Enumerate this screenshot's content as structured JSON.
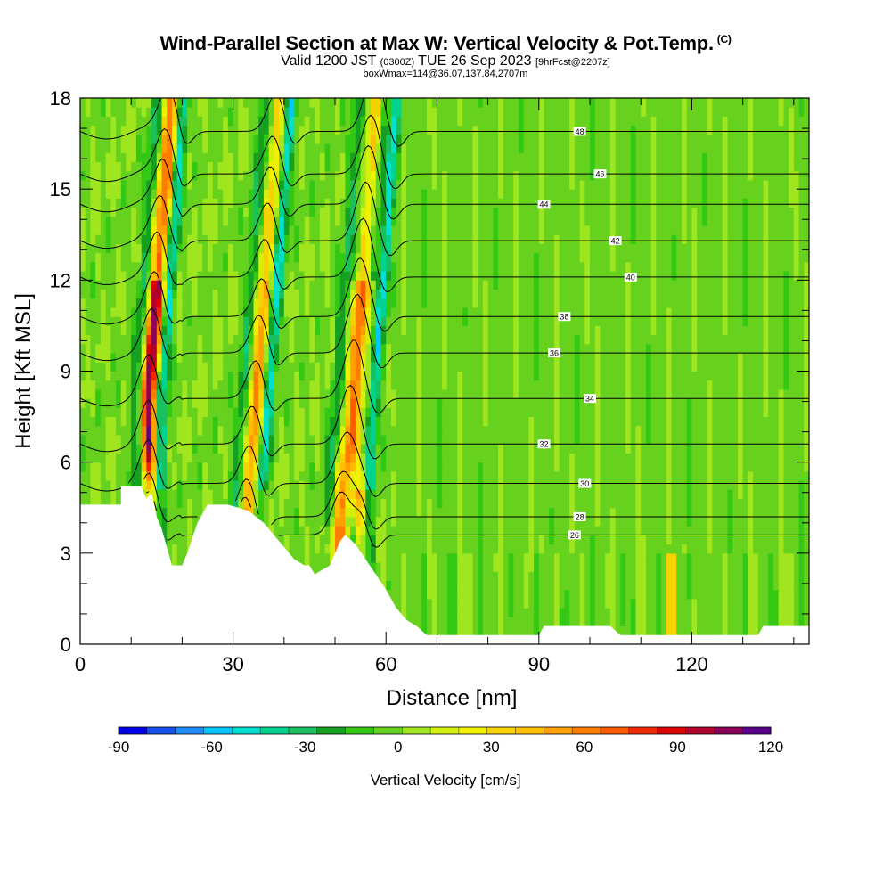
{
  "header": {
    "title_main": "Wind-Parallel Section at Max W: Vertical Velocity & Pot.Temp.",
    "title_copyright": "(C)",
    "valid_prefix": "Valid 1200 JST",
    "valid_utc": "(0300Z)",
    "valid_date": "TUE 26 Sep 2023",
    "forecast": "[9hrFcst@2207z]",
    "location_line": "boxWmax=114@36.07,137.84,2707m"
  },
  "chart_data": {
    "type": "heatmap",
    "title": "Wind-Parallel Section at Max W: Vertical Velocity & Pot.Temp.",
    "xlabel": "Distance [nm]",
    "ylabel": "Height [Kft MSL]",
    "xlim": [
      0,
      143
    ],
    "ylim": [
      0,
      18
    ],
    "xticks": [
      0,
      30,
      60,
      90,
      120
    ],
    "yticks": [
      0,
      3,
      6,
      9,
      12,
      15,
      18
    ],
    "colorbar": {
      "label": "Vertical Velocity [cm/s]",
      "ticks": [
        -90,
        -60,
        -30,
        0,
        30,
        60,
        90,
        120
      ],
      "min": -90,
      "max": 120,
      "step": 10,
      "colors": [
        "#0000e6",
        "#1450f0",
        "#1e8cff",
        "#00c8ff",
        "#00e0d0",
        "#00d290",
        "#18c060",
        "#14a020",
        "#32c814",
        "#66d21e",
        "#a0e61e",
        "#d2f00a",
        "#f0f000",
        "#f5d200",
        "#ffbe00",
        "#ffa000",
        "#ff7d00",
        "#ff5a00",
        "#f02800",
        "#dc0000",
        "#b4002d",
        "#8c005a",
        "#5a008c"
      ]
    },
    "terrain_kft": [
      [
        0,
        4.6
      ],
      [
        8,
        4.6
      ],
      [
        8,
        5.2
      ],
      [
        12,
        5.2
      ],
      [
        13,
        4.8
      ],
      [
        14,
        5.0
      ],
      [
        15,
        4.2
      ],
      [
        16,
        3.8
      ],
      [
        17,
        3.2
      ],
      [
        18,
        2.6
      ],
      [
        20,
        2.6
      ],
      [
        21,
        3.0
      ],
      [
        23,
        4.0
      ],
      [
        25,
        4.6
      ],
      [
        28,
        4.6
      ],
      [
        29,
        4.6
      ],
      [
        33,
        4.4
      ],
      [
        36,
        4.0
      ],
      [
        38,
        3.6
      ],
      [
        40,
        3.2
      ],
      [
        42,
        2.8
      ],
      [
        44,
        2.6
      ],
      [
        45,
        2.6
      ],
      [
        46,
        2.3
      ],
      [
        49,
        2.6
      ],
      [
        51,
        3.4
      ],
      [
        52,
        3.6
      ],
      [
        54,
        3.3
      ],
      [
        56,
        2.8
      ],
      [
        58,
        2.3
      ],
      [
        60,
        1.8
      ],
      [
        62,
        1.2
      ],
      [
        64,
        0.8
      ],
      [
        66,
        0.6
      ],
      [
        68,
        0.3
      ],
      [
        90,
        0.3
      ],
      [
        91,
        0.6
      ],
      [
        104,
        0.6
      ],
      [
        106,
        0.3
      ],
      [
        133,
        0.3
      ],
      [
        134,
        0.6
      ],
      [
        143,
        0.6
      ]
    ],
    "updrafts": [
      {
        "x": 13.5,
        "base": 8.2,
        "peak_wmax": 120
      },
      {
        "x": 32.5,
        "base": 3.5,
        "peak_wmax": 60
      },
      {
        "x": 51.0,
        "base": 3.6,
        "peak_wmax": 80
      },
      {
        "x": 54.5,
        "base": 6.5,
        "peak_wmax": 70
      }
    ],
    "isentropes": [
      {
        "value": 26,
        "label_x": 97,
        "label_y": 3.6
      },
      {
        "value": 28,
        "label_x": 98,
        "label_y": 4.2
      },
      {
        "value": 30,
        "label_x": 99,
        "label_y": 5.3
      },
      {
        "value": 32,
        "label_x": 91,
        "label_y": 6.6
      },
      {
        "value": 34,
        "label_x": 100,
        "label_y": 8.1
      },
      {
        "value": 36,
        "label_x": 93,
        "label_y": 9.6
      },
      {
        "value": 38,
        "label_x": 95,
        "label_y": 10.8
      },
      {
        "value": 40,
        "label_x": 108,
        "label_y": 12.1
      },
      {
        "value": 42,
        "label_x": 105,
        "label_y": 13.3
      },
      {
        "value": 44,
        "label_x": 91,
        "label_y": 14.5
      },
      {
        "value": 46,
        "label_x": 102,
        "label_y": 15.5
      },
      {
        "value": 48,
        "label_x": 98,
        "label_y": 16.9
      }
    ],
    "colorbar_label": "Vertical Velocity [cm/s]"
  }
}
